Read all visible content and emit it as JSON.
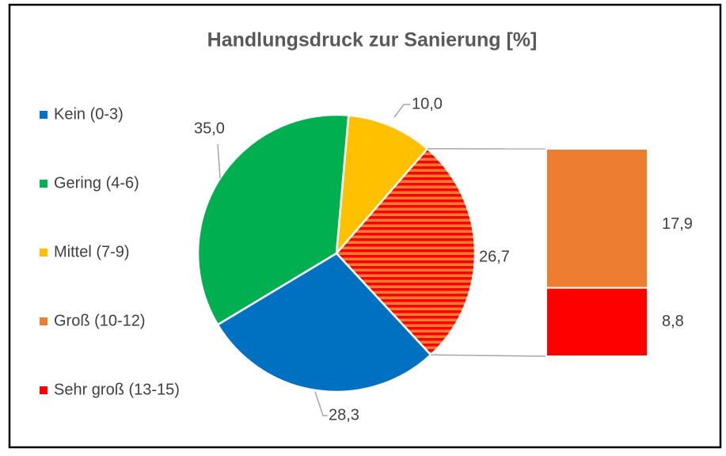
{
  "chart_data": {
    "type": "bar-of-pie",
    "title": "Handlungsdruck zur Sanierung [%]",
    "categories": [
      "Kein (0-3)",
      "Gering (4-6)",
      "Mittel (7-9)",
      "Groß (10-12)",
      "Sehr groß (13-15)"
    ],
    "values": [
      28.3,
      35.0,
      10.0,
      17.9,
      8.8
    ],
    "value_labels": [
      "28,3",
      "35,0",
      "10,0",
      "17,9",
      "8,8"
    ],
    "colors": [
      "#0070c0",
      "#00b050",
      "#ffc000",
      "#ed7d31",
      "#ff0000"
    ],
    "other_value": 26.7,
    "other_label": "26,7",
    "split": 2,
    "legend": "left"
  }
}
